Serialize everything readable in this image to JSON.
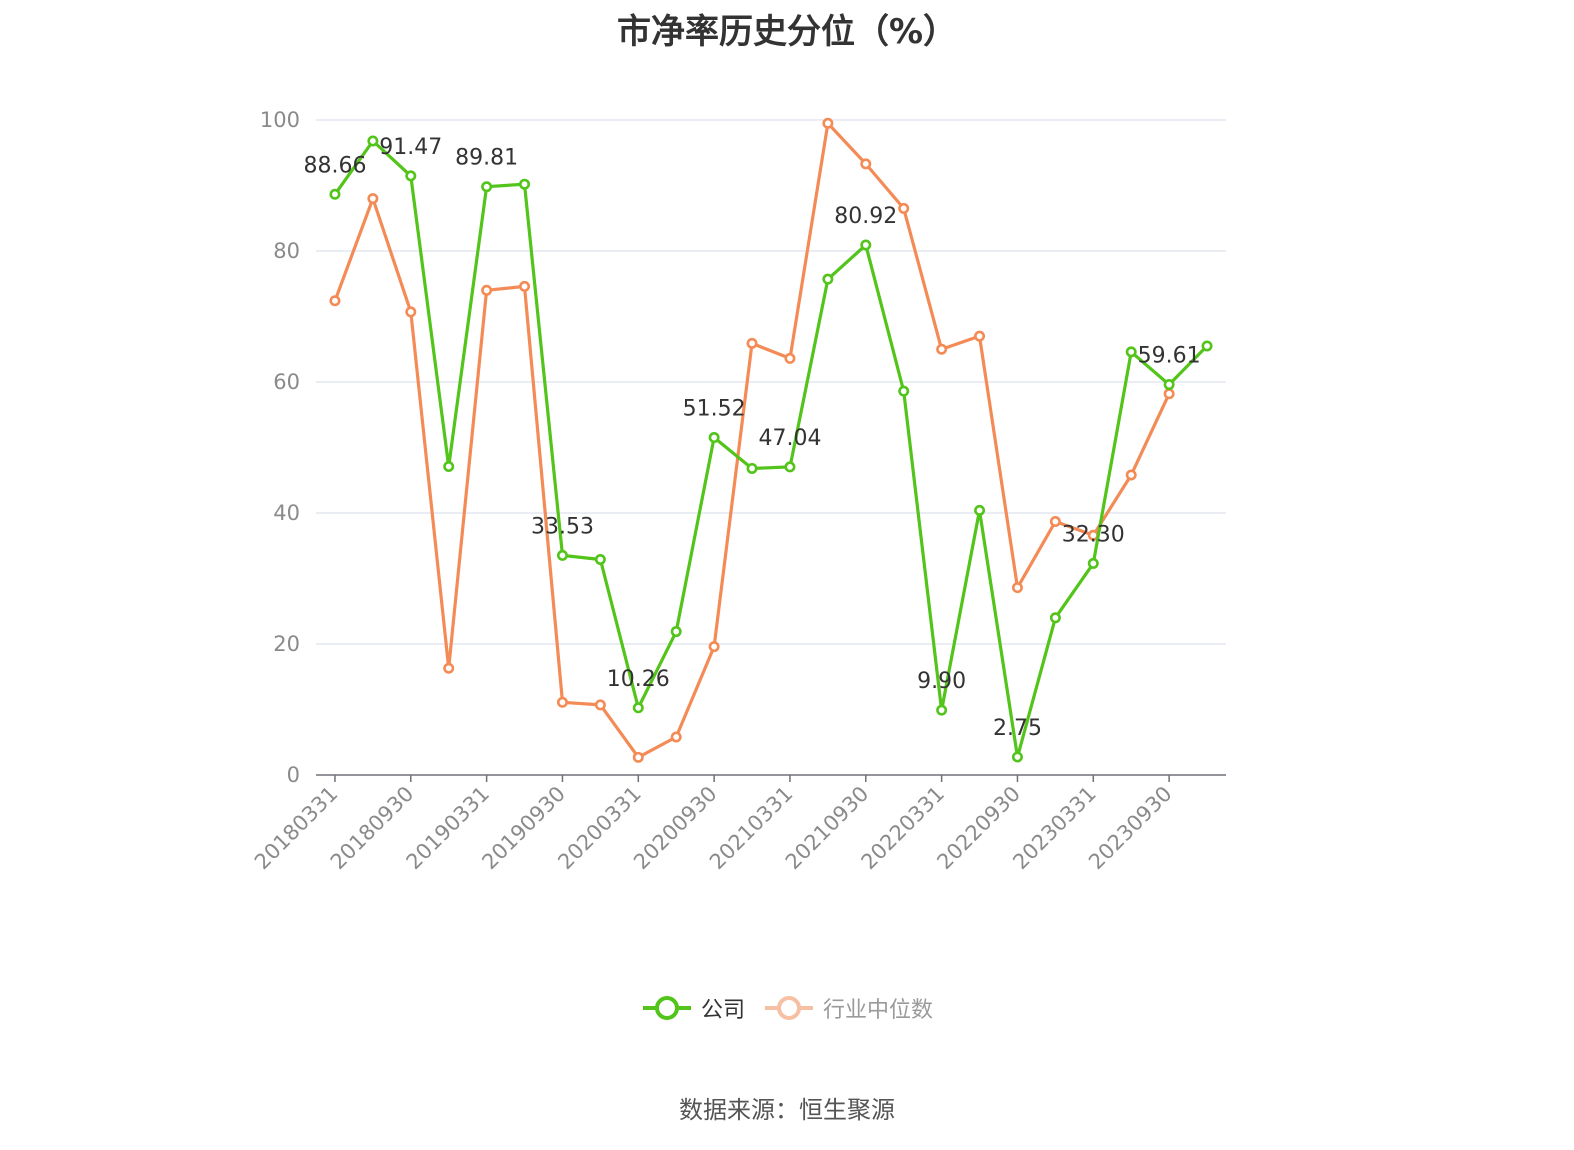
{
  "chart_data": {
    "type": "line",
    "title": "市净率历史分位（%）",
    "source": "数据来源：恒生聚源",
    "ylim": [
      0,
      100
    ],
    "y_ticks": [
      "0",
      "20",
      "40",
      "60",
      "80",
      "100"
    ],
    "grid": true,
    "legend_position": "bottom-center",
    "x": [
      "20180331",
      "20180630",
      "20180930",
      "20181231",
      "20190331",
      "20190630",
      "20190930",
      "20191231",
      "20200331",
      "20200630",
      "20200930",
      "20201231",
      "20210331",
      "20210630",
      "20210930",
      "20211231",
      "20220331",
      "20220630",
      "20220930",
      "20221231",
      "20230331",
      "20230630",
      "20230930",
      "20231231"
    ],
    "x_tick_labels": [
      "20180331",
      "20180930",
      "20190331",
      "20190930",
      "20200331",
      "20200930",
      "20210331",
      "20210930",
      "20220331",
      "20220930",
      "20230331",
      "20230930"
    ],
    "series": [
      {
        "name": "公司",
        "color": "#52c41a",
        "values": [
          88.66,
          96.8,
          91.47,
          47.1,
          89.81,
          90.2,
          33.53,
          32.9,
          10.26,
          21.9,
          51.52,
          46.8,
          47.04,
          75.7,
          80.92,
          58.6,
          9.9,
          40.4,
          2.75,
          24.0,
          32.3,
          64.6,
          59.61,
          65.5
        ],
        "data_labels": [
          {
            "index": 0,
            "text": "88.66"
          },
          {
            "index": 2,
            "text": "91.47"
          },
          {
            "index": 4,
            "text": "89.81"
          },
          {
            "index": 6,
            "text": "33.53"
          },
          {
            "index": 8,
            "text": "10.26"
          },
          {
            "index": 10,
            "text": "51.52"
          },
          {
            "index": 12,
            "text": "47.04"
          },
          {
            "index": 14,
            "text": "80.92"
          },
          {
            "index": 16,
            "text": "9.90"
          },
          {
            "index": 18,
            "text": "2.75"
          },
          {
            "index": 20,
            "text": "32.30"
          },
          {
            "index": 22,
            "text": "59.61"
          }
        ]
      },
      {
        "name": "行业中位数",
        "color": "#f48b56",
        "values": [
          72.4,
          88.0,
          70.7,
          16.3,
          74.0,
          74.6,
          11.1,
          10.7,
          2.7,
          5.8,
          19.6,
          65.9,
          63.6,
          99.5,
          93.3,
          86.5,
          65.0,
          67.0,
          28.6,
          38.7,
          36.6,
          45.8,
          58.2,
          null
        ]
      }
    ]
  }
}
